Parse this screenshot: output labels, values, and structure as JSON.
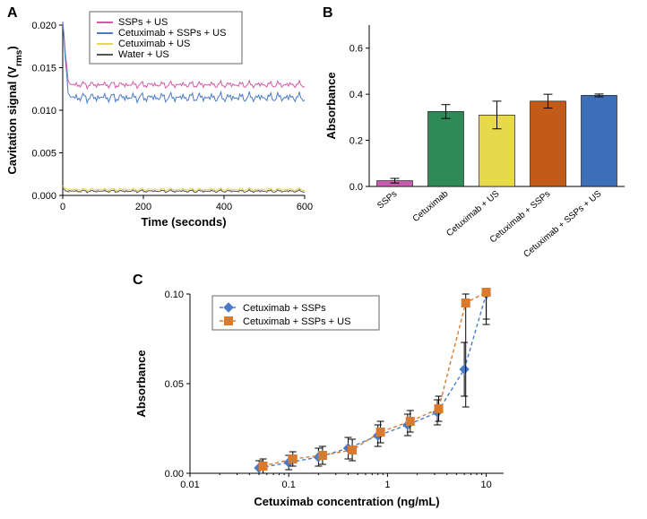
{
  "panelA": {
    "label": "A",
    "type": "line",
    "xAxis": {
      "title": "Time (seconds)",
      "min": 0,
      "max": 600,
      "ticks": [
        0,
        200,
        400,
        600
      ]
    },
    "yAxis": {
      "title": "Cavitation signal (V_rms)",
      "subscriptPart": "rms",
      "prefix": "Cavitation signal (V",
      "suffix": ")",
      "min": 0,
      "max": 0.02,
      "ticks": [
        0.0,
        0.005,
        0.01,
        0.015,
        0.02
      ]
    },
    "legend": [
      {
        "label": "SSPs + US",
        "color": "#d65aa8"
      },
      {
        "label": "Cetuximab + SSPs + US",
        "color": "#4a7bc8"
      },
      {
        "label": "Cetuximab + US",
        "color": "#e6d94a"
      },
      {
        "label": "Water + US",
        "color": "#555555"
      }
    ],
    "series": [
      {
        "color": "#d65aa8",
        "start": 0.02,
        "level": 0.013,
        "noise": 0.0005
      },
      {
        "color": "#4a7bc8",
        "start": 0.02,
        "level": 0.0115,
        "noise": 0.0007
      },
      {
        "color": "#e6d94a",
        "start": 0.001,
        "level": 0.0007,
        "noise": 0.0002
      },
      {
        "color": "#555555",
        "start": 0.0007,
        "level": 0.0005,
        "noise": 0.0002
      }
    ]
  },
  "panelB": {
    "label": "B",
    "type": "bar",
    "yAxis": {
      "title": "Absorbance",
      "min": 0,
      "max": 0.7,
      "ticks": [
        0,
        0.2,
        0.4,
        0.6
      ]
    },
    "bars": [
      {
        "label": "SSPs",
        "value": 0.025,
        "err": 0.01,
        "color": "#c85ab0"
      },
      {
        "label": "Cetuximab",
        "value": 0.325,
        "err": 0.03,
        "color": "#2e8b57"
      },
      {
        "label": "Cetuximab + US",
        "value": 0.31,
        "err": 0.06,
        "color": "#e6d94a"
      },
      {
        "label": "Cetuximab + SSPs",
        "value": 0.37,
        "err": 0.03,
        "color": "#c25b1a"
      },
      {
        "label": "Cetuximab + SSPs + US",
        "value": 0.395,
        "err": 0.006,
        "color": "#3d6eb8"
      }
    ]
  },
  "panelC": {
    "label": "C",
    "type": "line-markers-logx",
    "xAxis": {
      "title": "Cetuximab concentration (ng/mL)",
      "min": 0.01,
      "max": 15,
      "ticks": [
        0.01,
        0.1,
        1,
        10
      ],
      "tickLabels": [
        "0.01",
        "0.1",
        "1",
        "10"
      ]
    },
    "yAxis": {
      "title": "Absorbance",
      "min": 0,
      "max": 0.1,
      "ticks": [
        0.0,
        0.05,
        0.1
      ]
    },
    "legend": [
      {
        "label": "Cetuximab + SSPs",
        "color": "#4a7bc8",
        "marker": "diamond"
      },
      {
        "label": "Cetuximab + SSPs + US",
        "color": "#d97a2e",
        "marker": "square"
      }
    ],
    "series": [
      {
        "color": "#4a7bc8",
        "marker": "diamond",
        "points": [
          {
            "x": 0.05,
            "y": 0.003,
            "err": 0.004
          },
          {
            "x": 0.1,
            "y": 0.006,
            "err": 0.004
          },
          {
            "x": 0.2,
            "y": 0.009,
            "err": 0.005
          },
          {
            "x": 0.4,
            "y": 0.014,
            "err": 0.006
          },
          {
            "x": 0.8,
            "y": 0.021,
            "err": 0.006
          },
          {
            "x": 1.6,
            "y": 0.027,
            "err": 0.006
          },
          {
            "x": 3.2,
            "y": 0.034,
            "err": 0.007
          },
          {
            "x": 6.0,
            "y": 0.058,
            "err": 0.015
          },
          {
            "x": 10.0,
            "y": 0.1,
            "err": 0.017
          }
        ]
      },
      {
        "color": "#d97a2e",
        "marker": "square",
        "points": [
          {
            "x": 0.055,
            "y": 0.004,
            "err": 0.004
          },
          {
            "x": 0.11,
            "y": 0.008,
            "err": 0.004
          },
          {
            "x": 0.22,
            "y": 0.01,
            "err": 0.005
          },
          {
            "x": 0.44,
            "y": 0.013,
            "err": 0.006
          },
          {
            "x": 0.85,
            "y": 0.023,
            "err": 0.006
          },
          {
            "x": 1.7,
            "y": 0.029,
            "err": 0.006
          },
          {
            "x": 3.3,
            "y": 0.036,
            "err": 0.007
          },
          {
            "x": 6.2,
            "y": 0.095,
            "err": 0.058
          },
          {
            "x": 10.0,
            "y": 0.101,
            "err": 0.015
          }
        ]
      }
    ]
  },
  "colors": {
    "axis": "#000000",
    "grid": "#cccccc",
    "dash": "4,3"
  }
}
